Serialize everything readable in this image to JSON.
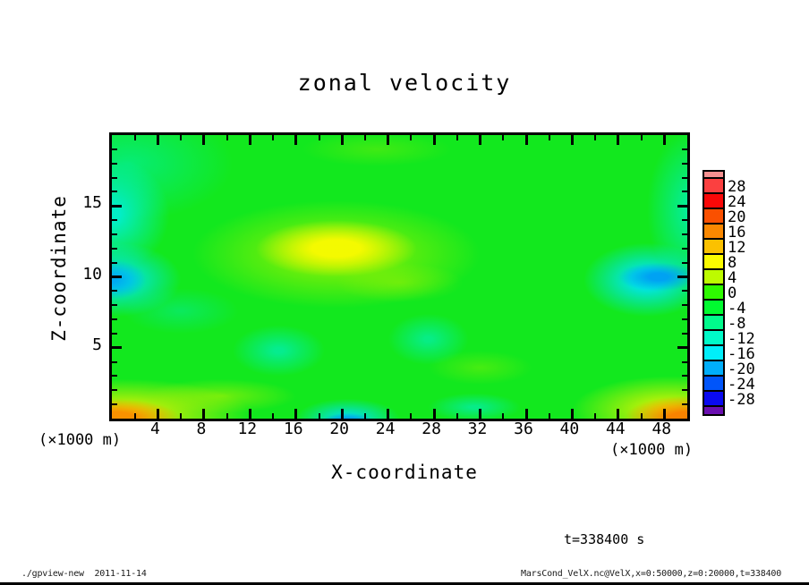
{
  "title": "zonal velocity",
  "time_label": "t=338400 s",
  "footer_left": "./gpview-new  2011-11-14",
  "footer_right": "MarsCond_VelX.nc@VelX,x=0:50000,z=0:20000,t=338400",
  "plot": {
    "x_axis": {
      "label": "X-coordinate",
      "unit": "(×1000 m)",
      "range": [
        0,
        50
      ],
      "major_ticks": [
        4,
        8,
        12,
        16,
        20,
        24,
        28,
        32,
        36,
        40,
        44,
        48
      ],
      "minor_ticks": [
        2,
        6,
        10,
        14,
        18,
        22,
        26,
        30,
        34,
        38,
        42,
        46
      ]
    },
    "z_axis": {
      "label": "Z-coordinate",
      "unit": "(×1000 m)",
      "range": [
        0,
        20
      ],
      "major_ticks": [
        5,
        10,
        15
      ],
      "minor_ticks": [
        1,
        2,
        3,
        4,
        6,
        7,
        8,
        9,
        11,
        12,
        13,
        14,
        16,
        17,
        18,
        19
      ]
    }
  },
  "colorbar": {
    "tick_labels": [
      "28",
      "24",
      "20",
      "16",
      "12",
      "8",
      "4",
      "0",
      "-4",
      "-8",
      "-12",
      "-16",
      "-20",
      "-24",
      "-28"
    ],
    "band_colors_top_to_bottom": [
      "#fb4040",
      "#f90808",
      "#fa5000",
      "#fa8800",
      "#fbc100",
      "#fbfb00",
      "#bdfb00",
      "#2efa00",
      "#00fa30",
      "#00fa8c",
      "#00fac8",
      "#00eefa",
      "#00aefa",
      "#0055fa",
      "#0a0af0"
    ],
    "cap_top_color": "#f59090",
    "cap_bottom_color": "#6a0fb0"
  },
  "chart_data": {
    "type": "heatmap",
    "title": "zonal velocity",
    "xlabel": "X-coordinate (×1000 m)",
    "ylabel": "Z-coordinate (×1000 m)",
    "xlim": [
      0,
      50
    ],
    "ylim": [
      0,
      20
    ],
    "time": "t=338400 s",
    "contour_levels": [
      -28,
      -24,
      -20,
      -16,
      -12,
      -8,
      -4,
      0,
      4,
      8,
      12,
      16,
      20,
      24,
      28
    ],
    "background_value_range": "0 to 8 (green field)",
    "features": [
      {
        "desc": "yellow maximum patch",
        "x": 20,
        "z": 11.5,
        "value": "8 to 12"
      },
      {
        "desc": "cyan-blue minimum on left edge",
        "x": 1,
        "z": 9.7,
        "value": "-12 to -16"
      },
      {
        "desc": "cyan band on left edge",
        "x": 1,
        "z": 14,
        "value": "-8"
      },
      {
        "desc": "teal region in top-left corner",
        "x": 3,
        "z": 18,
        "value": "-4 to -8"
      },
      {
        "desc": "blue minimum near right edge",
        "x": 47,
        "z": 10,
        "value": "-12 to -16"
      },
      {
        "desc": "teal band along right edge",
        "x": 49,
        "z": 14,
        "value": "-4 to -8"
      },
      {
        "desc": "orange maximum in bottom-left corner",
        "x": 1,
        "z": 0.5,
        "value": "16 to 20"
      },
      {
        "desc": "orange-red maximum in bottom-right corner",
        "x": 49,
        "z": 0.5,
        "value": "20 to 24"
      },
      {
        "desc": "blue minimum at bottom center",
        "x": 20.5,
        "z": 0.3,
        "value": "-8 to -12"
      },
      {
        "desc": "teal patch",
        "x": 14.5,
        "z": 4.8,
        "value": "-4"
      },
      {
        "desc": "teal patch",
        "x": 27.5,
        "z": 5.5,
        "value": "-4"
      },
      {
        "desc": "teal patch near bottom",
        "x": 31.5,
        "z": 0.8,
        "value": "-4"
      }
    ],
    "tone_blobs": [
      {
        "name": "upper-left-teal-wash",
        "cx": 3,
        "cy": 10,
        "rx": 18,
        "ry": 20,
        "color": "rgba(0,238,165,0.65)",
        "edge": 0
      },
      {
        "name": "left-cyan-band",
        "cx": 0,
        "cy": 28,
        "rx": 10,
        "ry": 20,
        "color": "rgba(0,238,225,0.85)",
        "edge": 15
      },
      {
        "name": "left-blue-blob-halo",
        "cx": 1,
        "cy": 51,
        "rx": 11,
        "ry": 13,
        "color": "rgba(0,228,238,0.9)",
        "edge": 20
      },
      {
        "name": "left-blue-blob-core",
        "cx": 0,
        "cy": 51,
        "rx": 6,
        "ry": 7,
        "color": "rgba(0,160,245,0.85)",
        "edge": 15
      },
      {
        "name": "left-mid-teal",
        "cx": 12,
        "cy": 62,
        "rx": 10,
        "ry": 8,
        "color": "rgba(0,235,190,0.4)",
        "edge": 0
      },
      {
        "name": "yellow-green-halo",
        "cx": 39,
        "cy": 42,
        "rx": 25,
        "ry": 19,
        "color": "rgba(160,242,0,0.8)",
        "edge": 20
      },
      {
        "name": "yellow-core",
        "cx": 39,
        "cy": 40,
        "rx": 14,
        "ry": 10,
        "color": "rgba(250,250,0,0.95)",
        "edge": 30
      },
      {
        "name": "yellow-green-tail",
        "cx": 50,
        "cy": 52,
        "rx": 11,
        "ry": 7,
        "color": "rgba(170,242,0,0.45)",
        "edge": 0
      },
      {
        "name": "top-mid-yellow-green",
        "cx": 46,
        "cy": 5,
        "rx": 13,
        "ry": 6,
        "color": "rgba(150,240,0,0.35)",
        "edge": 0
      },
      {
        "name": "right-teal-column",
        "cx": 101,
        "cy": 26,
        "rx": 8,
        "ry": 28,
        "color": "rgba(0,238,190,0.75)",
        "edge": 15
      },
      {
        "name": "right-blue-blob-halo",
        "cx": 93,
        "cy": 51,
        "rx": 11,
        "ry": 13,
        "color": "rgba(0,228,240,0.92)",
        "edge": 25
      },
      {
        "name": "right-blue-blob-core",
        "cx": 95,
        "cy": 50,
        "rx": 7,
        "ry": 5,
        "color": "rgba(0,155,245,0.9)",
        "edge": 25
      },
      {
        "name": "teal-patch-left",
        "cx": 29,
        "cy": 76,
        "rx": 8,
        "ry": 9,
        "color": "rgba(0,238,190,0.7)",
        "edge": 10
      },
      {
        "name": "teal-patch-center",
        "cx": 55,
        "cy": 72,
        "rx": 7,
        "ry": 9,
        "color": "rgba(0,240,200,0.6)",
        "edge": 10
      },
      {
        "name": "teal-patch-bottom",
        "cx": 63,
        "cy": 96,
        "rx": 8,
        "ry": 5,
        "color": "rgba(0,238,205,0.6)",
        "edge": 10
      },
      {
        "name": "bottom-left-yellow-halo",
        "cx": 2,
        "cy": 98,
        "rx": 22,
        "ry": 12,
        "color": "rgba(242,242,0,0.9)",
        "edge": 12
      },
      {
        "name": "bottom-left-orange-core",
        "cx": 0,
        "cy": 100,
        "rx": 12,
        "ry": 7,
        "color": "rgba(250,140,0,0.95)",
        "edge": 35
      },
      {
        "name": "bottom-left-yellowgreen-smear",
        "cx": 19,
        "cy": 92,
        "rx": 13,
        "ry": 6,
        "color": "rgba(190,242,0,0.55)",
        "edge": 0
      },
      {
        "name": "bottom-center-cyan-halo",
        "cx": 41,
        "cy": 100,
        "rx": 9,
        "ry": 7,
        "color": "rgba(0,225,240,0.9)",
        "edge": 15
      },
      {
        "name": "bottom-center-blue-core",
        "cx": 41,
        "cy": 102,
        "rx": 5,
        "ry": 4,
        "color": "rgba(0,110,238,0.9)",
        "edge": 25
      },
      {
        "name": "bottom-right-yellowgreen-patch",
        "cx": 64,
        "cy": 82,
        "rx": 9,
        "ry": 6,
        "color": "rgba(150,242,0,0.4)",
        "edge": 0
      },
      {
        "name": "bottom-right-yellow-halo",
        "cx": 97,
        "cy": 97,
        "rx": 17,
        "ry": 12,
        "color": "rgba(245,245,0,0.9)",
        "edge": 10
      },
      {
        "name": "bottom-right-orange-core",
        "cx": 100,
        "cy": 100,
        "rx": 11,
        "ry": 8,
        "color": "rgba(250,125,0,0.95)",
        "edge": 30
      },
      {
        "name": "bottom-right-red-inner",
        "cx": 102,
        "cy": 103,
        "rx": 5,
        "ry": 4,
        "color": "rgba(246,70,10,0.9)",
        "edge": 20
      }
    ]
  }
}
